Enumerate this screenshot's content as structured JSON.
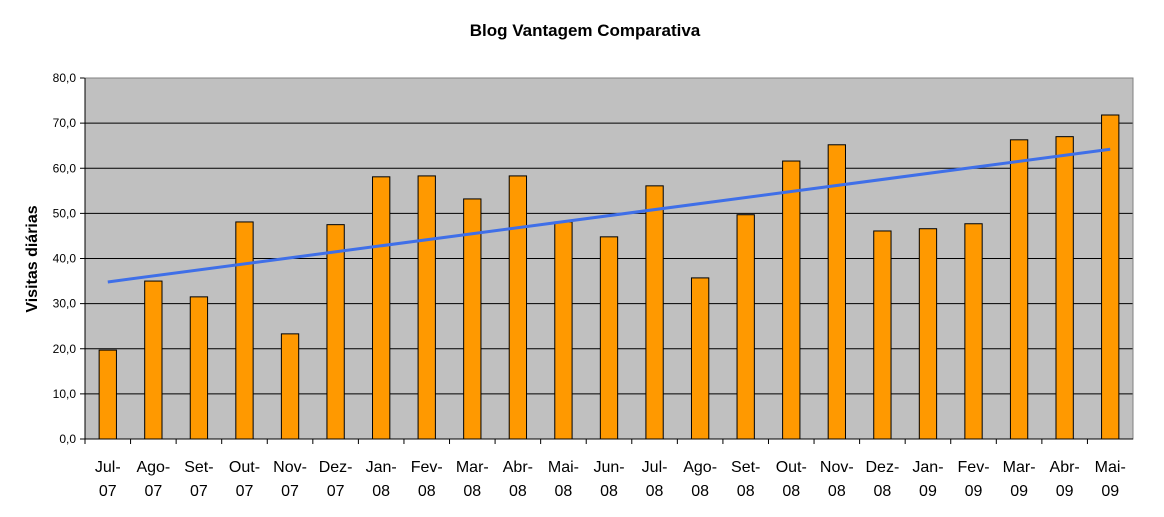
{
  "chart_data": {
    "type": "bar",
    "title": "Blog Vantagem Comparativa",
    "xlabel": "",
    "ylabel": "Visitas diárias",
    "ylim": [
      0,
      80
    ],
    "yticks": [
      "0,0",
      "10,0",
      "20,0",
      "30,0",
      "40,0",
      "50,0",
      "60,0",
      "70,0",
      "80,0"
    ],
    "categories": [
      [
        "Jul-",
        "07"
      ],
      [
        "Ago-",
        "07"
      ],
      [
        "Set-",
        "07"
      ],
      [
        "Out-",
        "07"
      ],
      [
        "Nov-",
        "07"
      ],
      [
        "Dez-",
        "07"
      ],
      [
        "Jan-",
        "08"
      ],
      [
        "Fev-",
        "08"
      ],
      [
        "Mar-",
        "08"
      ],
      [
        "Abr-",
        "08"
      ],
      [
        "Mai-",
        "08"
      ],
      [
        "Jun-",
        "08"
      ],
      [
        "Jul-",
        "08"
      ],
      [
        "Ago-",
        "08"
      ],
      [
        "Set-",
        "08"
      ],
      [
        "Out-",
        "08"
      ],
      [
        "Nov-",
        "08"
      ],
      [
        "Dez-",
        "08"
      ],
      [
        "Jan-",
        "09"
      ],
      [
        "Fev-",
        "09"
      ],
      [
        "Mar-",
        "09"
      ],
      [
        "Abr-",
        "09"
      ],
      [
        "Mai-",
        "09"
      ]
    ],
    "values": [
      19.7,
      35.0,
      31.5,
      48.1,
      23.3,
      47.5,
      58.1,
      58.3,
      53.2,
      58.3,
      48.1,
      44.8,
      56.1,
      35.7,
      49.7,
      61.6,
      65.2,
      46.1,
      46.6,
      47.7,
      66.3,
      67.0,
      71.8
    ],
    "trendline": {
      "type": "linear",
      "start": 34.8,
      "end": 64.2
    },
    "grid": true,
    "colors": {
      "bar": "#FF9900",
      "trend": "#3F6FE8",
      "plot_bg": "#C0C0C0"
    }
  }
}
